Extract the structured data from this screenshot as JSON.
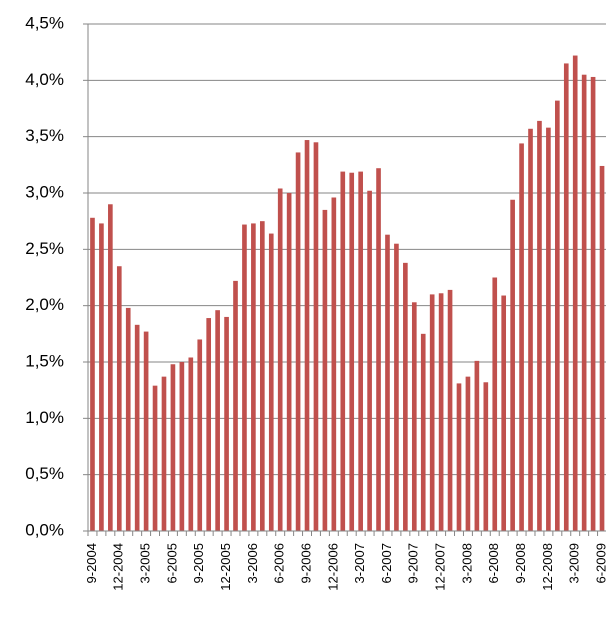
{
  "chart_data": {
    "type": "bar",
    "categories": [
      "9-2004",
      null,
      null,
      "12-2004",
      null,
      null,
      "3-2005",
      null,
      null,
      "6-2005",
      null,
      null,
      "9-2005",
      null,
      null,
      "12-2005",
      null,
      null,
      "3-2006",
      null,
      null,
      "6-2006",
      null,
      null,
      "9-2006",
      null,
      null,
      "12-2006",
      null,
      null,
      "3-2007",
      null,
      null,
      "6-2007",
      null,
      null,
      "9-2007",
      null,
      null,
      "12-2007",
      null,
      null,
      "3-2008",
      null,
      null,
      "6-2008",
      null,
      null,
      "9-2008",
      null,
      null,
      "12-2008",
      null,
      null,
      "3-2009",
      null,
      null,
      "6-2009"
    ],
    "values": [
      2.78,
      2.73,
      2.9,
      2.35,
      1.98,
      1.83,
      1.77,
      1.29,
      1.37,
      1.48,
      1.5,
      1.54,
      1.7,
      1.89,
      1.96,
      1.9,
      2.22,
      2.72,
      2.73,
      2.75,
      2.64,
      3.04,
      3.0,
      3.36,
      3.47,
      3.45,
      2.85,
      2.96,
      3.19,
      3.18,
      3.19,
      3.02,
      3.22,
      2.63,
      2.55,
      2.38,
      2.03,
      1.75,
      2.1,
      2.11,
      2.14,
      1.31,
      1.37,
      1.51,
      1.32,
      2.25,
      2.09,
      2.94,
      3.44,
      3.57,
      3.64,
      3.58,
      3.82,
      4.15,
      4.22,
      4.05,
      4.03,
      3.24
    ],
    "color": "#c0504d",
    "ylim": [
      0,
      4.5
    ],
    "yticks": [
      {
        "value": 0,
        "label": "0,0%"
      },
      {
        "value": 0.5,
        "label": "0,5%"
      },
      {
        "value": 1,
        "label": "1,0%"
      },
      {
        "value": 1.5,
        "label": "1,5%"
      },
      {
        "value": 2,
        "label": "2,0%"
      },
      {
        "value": 2.5,
        "label": "2,5%"
      },
      {
        "value": 3,
        "label": "3,0%"
      },
      {
        "value": 3.5,
        "label": "3,5%"
      },
      {
        "value": 4,
        "label": "4,0%"
      },
      {
        "value": 4.5,
        "label": "4,5%"
      }
    ],
    "grid": true
  }
}
